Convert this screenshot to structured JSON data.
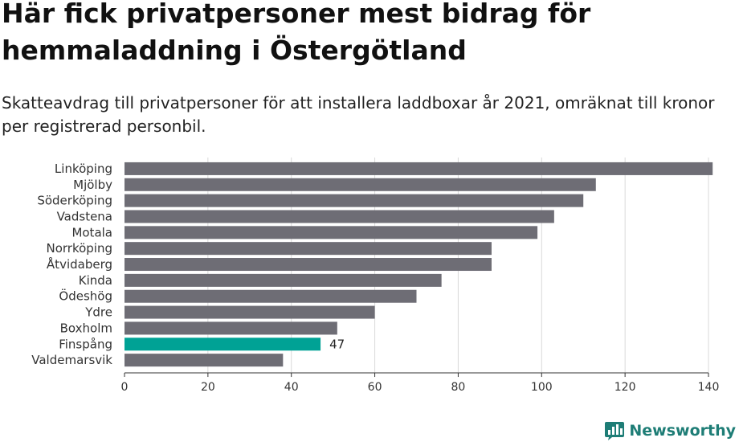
{
  "header": {
    "title": "Här fick privatpersoner mest bidrag för hemmaladdning i Östergötland",
    "subtitle": "Skatteavdrag till privatpersoner för att installera laddboxar år 2021, omräknat till kronor per registrerad personbil."
  },
  "brand": {
    "name": "Newsworthy",
    "icon": "newsworthy-logo-icon",
    "color": "#1e7d76"
  },
  "colors": {
    "bar": "#6e6d75",
    "highlight": "#00a295",
    "grid": "#d9d9d9",
    "axis": "#333333"
  },
  "chart_data": {
    "type": "bar",
    "orientation": "horizontal",
    "categories": [
      "Linköping",
      "Mjölby",
      "Söderköping",
      "Vadstena",
      "Motala",
      "Norrköping",
      "Åtvidaberg",
      "Kinda",
      "Ödeshög",
      "Ydre",
      "Boxholm",
      "Finspång",
      "Valdemarsvik"
    ],
    "values": [
      141,
      113,
      110,
      103,
      99,
      88,
      88,
      76,
      70,
      60,
      51,
      47,
      38
    ],
    "highlight": "Finspång",
    "data_labels": [
      {
        "category": "Finspång",
        "text": "47"
      }
    ],
    "xlim": [
      0,
      140
    ],
    "xticks": [
      0,
      20,
      40,
      60,
      80,
      100,
      120,
      140
    ],
    "grid": true,
    "legend": "none",
    "xlabel": "",
    "ylabel": ""
  }
}
